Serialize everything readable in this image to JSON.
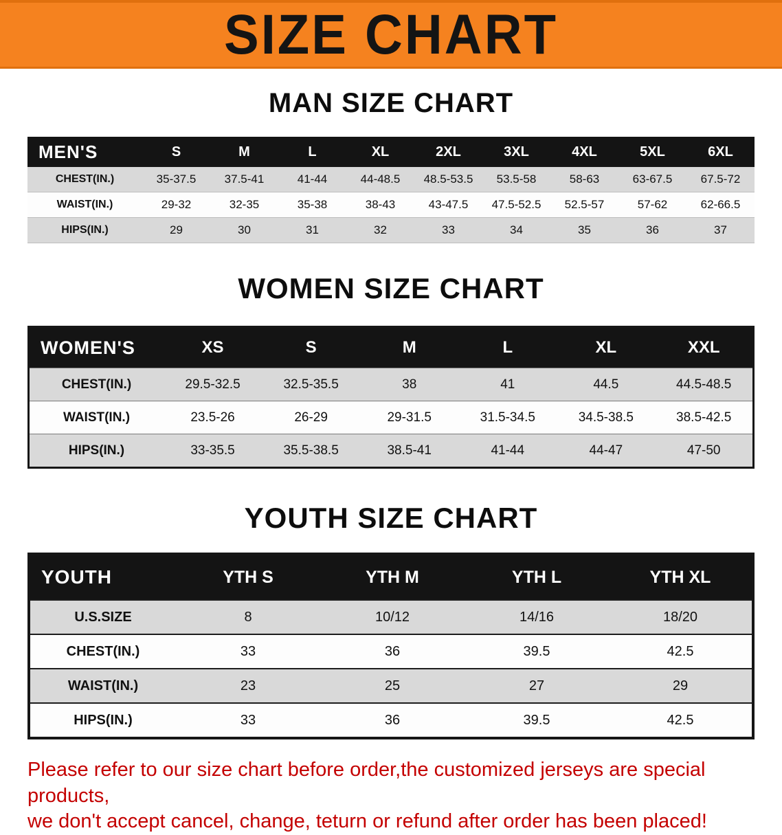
{
  "banner": {
    "title": "SIZE CHART",
    "bg_color": "#f5821f"
  },
  "colors": {
    "banner_orange": "#f5821f",
    "table_header_black": "#141414",
    "row_gray": "#d9d9d9",
    "notice_red": "#c40000"
  },
  "sections": [
    {
      "heading": "MAN SIZE CHART",
      "table": {
        "header": [
          "MEN'S",
          "S",
          "M",
          "L",
          "XL",
          "2XL",
          "3XL",
          "4XL",
          "5XL",
          "6XL"
        ],
        "rows": [
          [
            "CHEST(IN.)",
            "35-37.5",
            "37.5-41",
            "41-44",
            "44-48.5",
            "48.5-53.5",
            "53.5-58",
            "58-63",
            "63-67.5",
            "67.5-72"
          ],
          [
            "WAIST(IN.)",
            "29-32",
            "32-35",
            "35-38",
            "38-43",
            "43-47.5",
            "47.5-52.5",
            "52.5-57",
            "57-62",
            "62-66.5"
          ],
          [
            "HIPS(IN.)",
            "29",
            "30",
            "31",
            "32",
            "33",
            "34",
            "35",
            "36",
            "37"
          ]
        ]
      }
    },
    {
      "heading": "WOMEN SIZE CHART",
      "table": {
        "header": [
          "WOMEN'S",
          "XS",
          "S",
          "M",
          "L",
          "XL",
          "XXL"
        ],
        "rows": [
          [
            "CHEST(IN.)",
            "29.5-32.5",
            "32.5-35.5",
            "38",
            "41",
            "44.5",
            "44.5-48.5"
          ],
          [
            "WAIST(IN.)",
            "23.5-26",
            "26-29",
            "29-31.5",
            "31.5-34.5",
            "34.5-38.5",
            "38.5-42.5"
          ],
          [
            "HIPS(IN.)",
            "33-35.5",
            "35.5-38.5",
            "38.5-41",
            "41-44",
            "44-47",
            "47-50"
          ]
        ]
      }
    },
    {
      "heading": "YOUTH SIZE CHART",
      "table": {
        "header": [
          "YOUTH",
          "YTH S",
          "YTH M",
          "YTH L",
          "YTH XL"
        ],
        "rows": [
          [
            "U.S.SIZE",
            "8",
            "10/12",
            "14/16",
            "18/20"
          ],
          [
            "CHEST(IN.)",
            "33",
            "36",
            "39.5",
            "42.5"
          ],
          [
            "WAIST(IN.)",
            "23",
            "25",
            "27",
            "29"
          ],
          [
            "HIPS(IN.)",
            "33",
            "36",
            "39.5",
            "42.5"
          ]
        ]
      }
    }
  ],
  "footer": {
    "line1": "Please refer to our size chart before order,the customized jerseys are special products,",
    "line2": "we don't accept cancel, change, teturn or refund after order has been placed!"
  }
}
